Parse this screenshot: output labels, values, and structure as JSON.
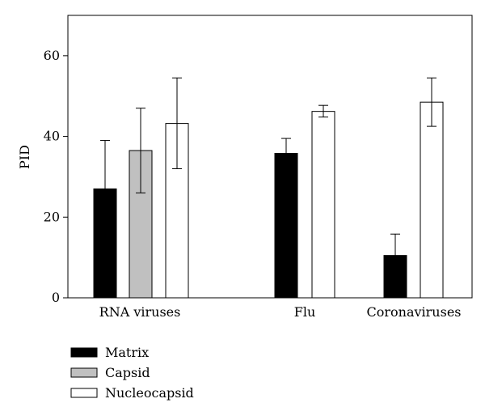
{
  "chart_data": {
    "type": "bar",
    "ylabel": "PID",
    "xlabel": "",
    "ylim": [
      0,
      70
    ],
    "yticks": [
      0,
      20,
      40,
      60
    ],
    "grid": false,
    "legend_position": "bottom-left",
    "groups": [
      {
        "label": "RNA viruses",
        "bars": [
          {
            "series": "Matrix",
            "value": 27,
            "error_high": 39
          },
          {
            "series": "Capsid",
            "value": 36.5,
            "error_low": 26,
            "error_high": 47
          },
          {
            "series": "Nucleocapsid",
            "value": 43.2,
            "error_low": 32,
            "error_high": 54.5
          }
        ]
      },
      {
        "label": "Flu",
        "bars": [
          {
            "series": "Matrix",
            "value": 35.8,
            "error_high": 39.5
          },
          {
            "series": "Nucleocapsid",
            "value": 46.2,
            "error_low": 44.8,
            "error_high": 47.7
          }
        ]
      },
      {
        "label": "Coronaviruses",
        "bars": [
          {
            "series": "Matrix",
            "value": 10.5,
            "error_high": 15.8
          },
          {
            "series": "Nucleocapsid",
            "value": 48.5,
            "error_low": 42.5,
            "error_high": 54.5
          }
        ]
      }
    ],
    "series": [
      {
        "name": "Matrix",
        "color": "#000000"
      },
      {
        "name": "Capsid",
        "color": "#c0c0c0"
      },
      {
        "name": "Nucleocapsid",
        "color": "#ffffff"
      }
    ]
  }
}
